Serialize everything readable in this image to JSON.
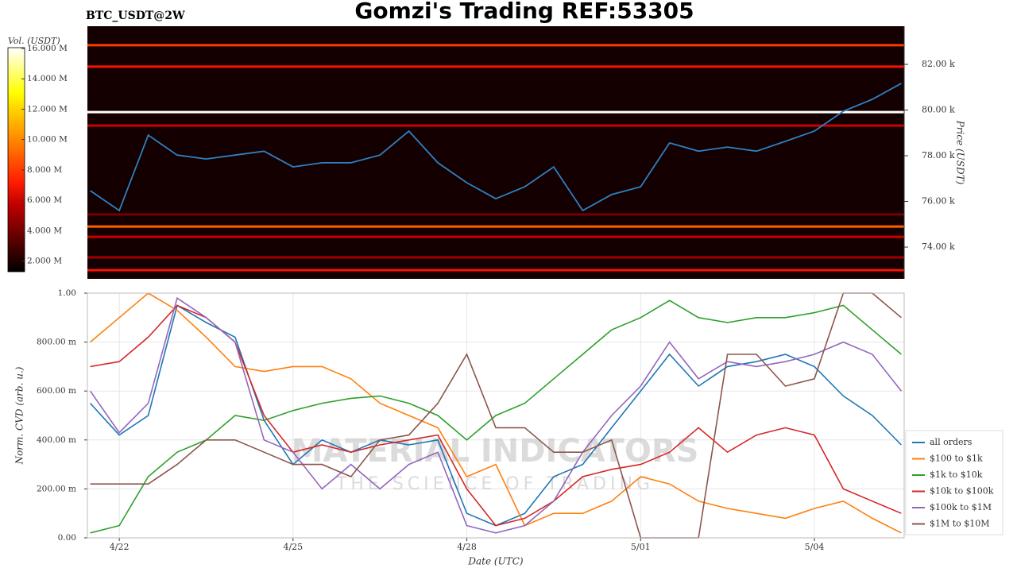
{
  "chart_data": [
    {
      "type": "heatmap",
      "title": "Gomzi's Trading REF:53305",
      "subtitle": "BTC_USDT@2W",
      "ylabel": "Price (USDT)",
      "clabel": "Vol. (USDT)",
      "xlim": [
        0.45,
        14.55
      ],
      "ylim": [
        72610,
        83670
      ],
      "yticks": [
        {
          "value": 74000,
          "label": "74.00 k"
        },
        {
          "value": 76000,
          "label": "76.00 k"
        },
        {
          "value": 78000,
          "label": "78.00 k"
        },
        {
          "value": 80000,
          "label": "80.00 k"
        },
        {
          "value": 82000,
          "label": "82.00 k"
        }
      ],
      "clim": [
        1300000,
        16050000
      ],
      "cticks": [
        {
          "value": 2000000,
          "label": "2.000 M"
        },
        {
          "value": 4000000,
          "label": "4.000 M"
        },
        {
          "value": 6000000,
          "label": "6.000 M"
        },
        {
          "value": 8000000,
          "label": "8.000 M"
        },
        {
          "value": 10000000,
          "label": "10.000 M"
        },
        {
          "value": 12000000,
          "label": "12.000 M"
        },
        {
          "value": 14000000,
          "label": "14.000 M"
        },
        {
          "value": 16000000,
          "label": "16.000 M"
        }
      ],
      "levels": {
        "prices": [
          82840,
          81900,
          79910,
          79320,
          75430,
          74900,
          74450,
          73550,
          72990
        ],
        "volumes": [
          8000000,
          7000000,
          16000000,
          6000000,
          4000000,
          9000000,
          6000000,
          5000000,
          7000000
        ]
      },
      "x": [
        0.5,
        1.0,
        1.5,
        2.0,
        2.5,
        3.0,
        3.5,
        4.0,
        4.5,
        5.0,
        5.5,
        6.0,
        6.5,
        7.0,
        7.5,
        8.0,
        8.5,
        9.0,
        9.5,
        10.0,
        10.5,
        11.0,
        11.5,
        12.0,
        12.5,
        13.0,
        13.5,
        14.0,
        14.5
      ],
      "series": [
        {
          "color": "#2f7fc1",
          "values": [
            76470,
            75600,
            78900,
            78030,
            77860,
            78030,
            78200,
            77510,
            77690,
            77690,
            78030,
            79080,
            77690,
            76820,
            76120,
            76640,
            77510,
            75600,
            76300,
            76640,
            78560,
            78200,
            78380,
            78200,
            78630,
            79080,
            79950,
            80470,
            81170
          ]
        }
      ]
    },
    {
      "type": "line",
      "xlabel": "Date (UTC)",
      "ylabel": "Norm. CVD (arb. u.)",
      "watermark": [
        "MATERIAL INDICATORS",
        "THE SCIENCE OF TRADING"
      ],
      "grid": true,
      "legend": "lower right",
      "xlim": [
        0.45,
        14.55
      ],
      "xticks": [
        {
          "value": 1,
          "label": "4/22"
        },
        {
          "value": 4,
          "label": "4/25"
        },
        {
          "value": 7,
          "label": "4/28"
        },
        {
          "value": 10,
          "label": "5/01"
        },
        {
          "value": 13,
          "label": "5/04"
        }
      ],
      "ylim": [
        0,
        1
      ],
      "yticks": [
        {
          "value": 0,
          "label": "0.00"
        },
        {
          "value": 0.2,
          "label": "200.00 m"
        },
        {
          "value": 0.4,
          "label": "400.00 m"
        },
        {
          "value": 0.6,
          "label": "600.00 m"
        },
        {
          "value": 0.8,
          "label": "800.00 m"
        },
        {
          "value": 1,
          "label": "1.00"
        }
      ],
      "x": [
        0.5,
        1.0,
        1.5,
        2.0,
        2.5,
        3.0,
        3.5,
        4.0,
        4.5,
        5.0,
        5.5,
        6.0,
        6.5,
        7.0,
        7.5,
        8.0,
        8.5,
        9.0,
        9.5,
        10.0,
        10.5,
        11.0,
        11.5,
        12.0,
        12.5,
        13.0,
        13.5,
        14.0,
        14.5
      ],
      "series": [
        {
          "name": "all orders",
          "color": "#1f77b4",
          "values": [
            0.55,
            0.42,
            0.5,
            0.95,
            0.88,
            0.82,
            0.48,
            0.3,
            0.4,
            0.35,
            0.4,
            0.38,
            0.4,
            0.1,
            0.05,
            0.1,
            0.25,
            0.3,
            0.45,
            0.6,
            0.75,
            0.62,
            0.7,
            0.72,
            0.75,
            0.7,
            0.58,
            0.5,
            0.38
          ]
        },
        {
          "name": "$100 to $1k",
          "color": "#ff7f0e",
          "values": [
            0.8,
            0.9,
            1.0,
            0.93,
            0.82,
            0.7,
            0.68,
            0.7,
            0.7,
            0.65,
            0.55,
            0.5,
            0.45,
            0.25,
            0.3,
            0.05,
            0.1,
            0.1,
            0.15,
            0.25,
            0.22,
            0.15,
            0.12,
            0.1,
            0.08,
            0.12,
            0.15,
            0.08,
            0.02
          ]
        },
        {
          "name": "$1k to $10k",
          "color": "#2ca02c",
          "values": [
            0.02,
            0.05,
            0.25,
            0.35,
            0.4,
            0.5,
            0.48,
            0.52,
            0.55,
            0.57,
            0.58,
            0.55,
            0.5,
            0.4,
            0.5,
            0.55,
            0.65,
            0.75,
            0.85,
            0.9,
            0.97,
            0.9,
            0.88,
            0.9,
            0.9,
            0.92,
            0.95,
            0.85,
            0.75
          ]
        },
        {
          "name": "$10k to $100k",
          "color": "#d62728",
          "values": [
            0.7,
            0.72,
            0.82,
            0.95,
            0.9,
            0.8,
            0.5,
            0.35,
            0.38,
            0.35,
            0.38,
            0.4,
            0.42,
            0.2,
            0.05,
            0.08,
            0.15,
            0.25,
            0.28,
            0.3,
            0.35,
            0.45,
            0.35,
            0.42,
            0.45,
            0.42,
            0.2,
            0.15,
            0.1
          ]
        },
        {
          "name": "$100k to $1M",
          "color": "#9467bd",
          "values": [
            0.6,
            0.43,
            0.55,
            0.98,
            0.9,
            0.8,
            0.4,
            0.35,
            0.2,
            0.3,
            0.2,
            0.3,
            0.35,
            0.05,
            0.02,
            0.05,
            0.15,
            0.35,
            0.5,
            0.62,
            0.8,
            0.65,
            0.72,
            0.7,
            0.72,
            0.75,
            0.8,
            0.75,
            0.6
          ]
        },
        {
          "name": "$1M to $10M",
          "color": "#8c564b",
          "values": [
            0.22,
            0.22,
            0.22,
            0.3,
            0.4,
            0.4,
            0.35,
            0.3,
            0.3,
            0.25,
            0.4,
            0.42,
            0.55,
            0.75,
            0.45,
            0.45,
            0.35,
            0.35,
            0.4,
            0.0,
            0.0,
            0.0,
            0.75,
            0.75,
            0.62,
            0.65,
            1.0,
            1.0,
            0.9
          ]
        }
      ]
    }
  ]
}
